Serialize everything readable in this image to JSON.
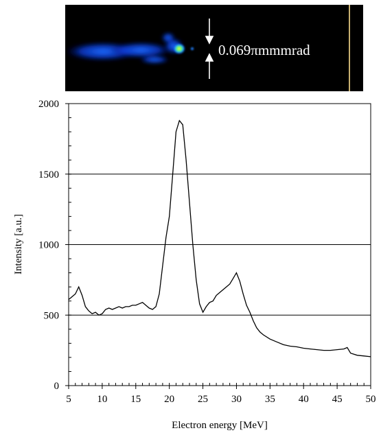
{
  "beam_image": {
    "annotation": "0.069πmmmrad",
    "colors": {
      "background": "#000000",
      "marker_line": "#c8b070",
      "arrow": "#ffffff"
    }
  },
  "chart_data": {
    "type": "line",
    "title": "",
    "xlabel": "Electron energy [MeV]",
    "ylabel": "Intensity [a.u.]",
    "xlim": [
      5,
      50
    ],
    "ylim": [
      0,
      2000
    ],
    "xticks": [
      5,
      10,
      15,
      20,
      25,
      30,
      35,
      40,
      45,
      50
    ],
    "yticks": [
      0,
      500,
      1000,
      1500,
      2000
    ],
    "grid": "horizontal at 500, 1000, 1500",
    "legend": "none",
    "line_color": "#000000",
    "series": [
      {
        "x": [
          5.0,
          5.5,
          6.0,
          6.5,
          7.0,
          7.5,
          8.0,
          8.5,
          9.0,
          9.5,
          10.0,
          10.5,
          11.0,
          11.5,
          12.0,
          12.5,
          13.0,
          13.5,
          14.0,
          14.5,
          15.0,
          15.5,
          16.0,
          16.5,
          17.0,
          17.5,
          18.0,
          18.5,
          19.0,
          19.5,
          20.0,
          20.5,
          21.0,
          21.5,
          22.0,
          22.5,
          23.0,
          23.5,
          24.0,
          24.5,
          25.0,
          25.5,
          26.0,
          26.5,
          27.0,
          27.5,
          28.0,
          28.5,
          29.0,
          29.5,
          30.0,
          30.5,
          31.0,
          31.5,
          32.0,
          32.5,
          33.0,
          33.5,
          34.0,
          35.0,
          36.0,
          37.0,
          38.0,
          39.0,
          40.0,
          41.0,
          42.0,
          43.0,
          44.0,
          45.0,
          46.0,
          46.5,
          47.0,
          48.0,
          49.0,
          50.0
        ],
        "y": [
          610,
          630,
          650,
          700,
          640,
          560,
          530,
          510,
          520,
          500,
          510,
          540,
          550,
          540,
          550,
          560,
          550,
          560,
          560,
          570,
          570,
          580,
          590,
          570,
          550,
          540,
          560,
          650,
          850,
          1050,
          1200,
          1500,
          1800,
          1880,
          1850,
          1600,
          1300,
          1000,
          750,
          580,
          520,
          560,
          590,
          600,
          640,
          660,
          680,
          700,
          720,
          760,
          800,
          740,
          650,
          570,
          520,
          460,
          410,
          380,
          360,
          330,
          310,
          290,
          280,
          275,
          265,
          260,
          255,
          250,
          250,
          255,
          260,
          270,
          230,
          215,
          210,
          205
        ]
      }
    ]
  }
}
